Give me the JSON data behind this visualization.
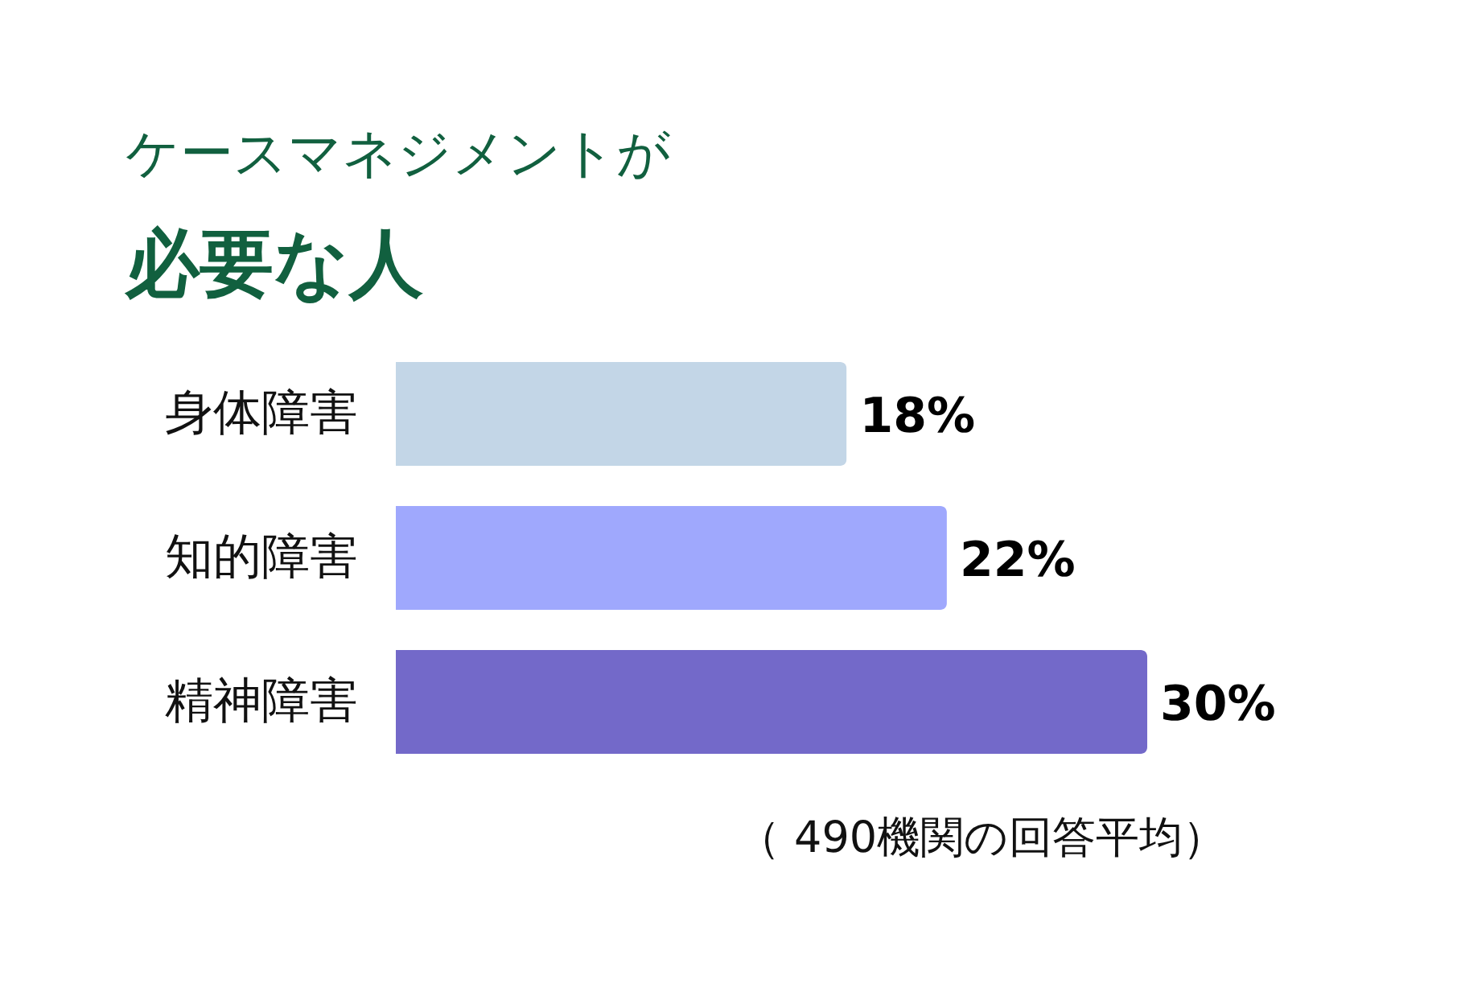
{
  "chart_data": {
    "type": "bar",
    "orientation": "horizontal",
    "title": "ケースマネジメントが",
    "subtitle": "必要な人",
    "categories": [
      "身体障害",
      "知的障害",
      "精神障害"
    ],
    "values": [
      18,
      22,
      30
    ],
    "colors": [
      "#c3d6e7",
      "#9fa8fd",
      "#7369c9"
    ],
    "value_labels": [
      "18%",
      "22%",
      "30%"
    ],
    "tick_labels": "y",
    "annotations": [
      "（ 490機関の回答平均）"
    ]
  }
}
